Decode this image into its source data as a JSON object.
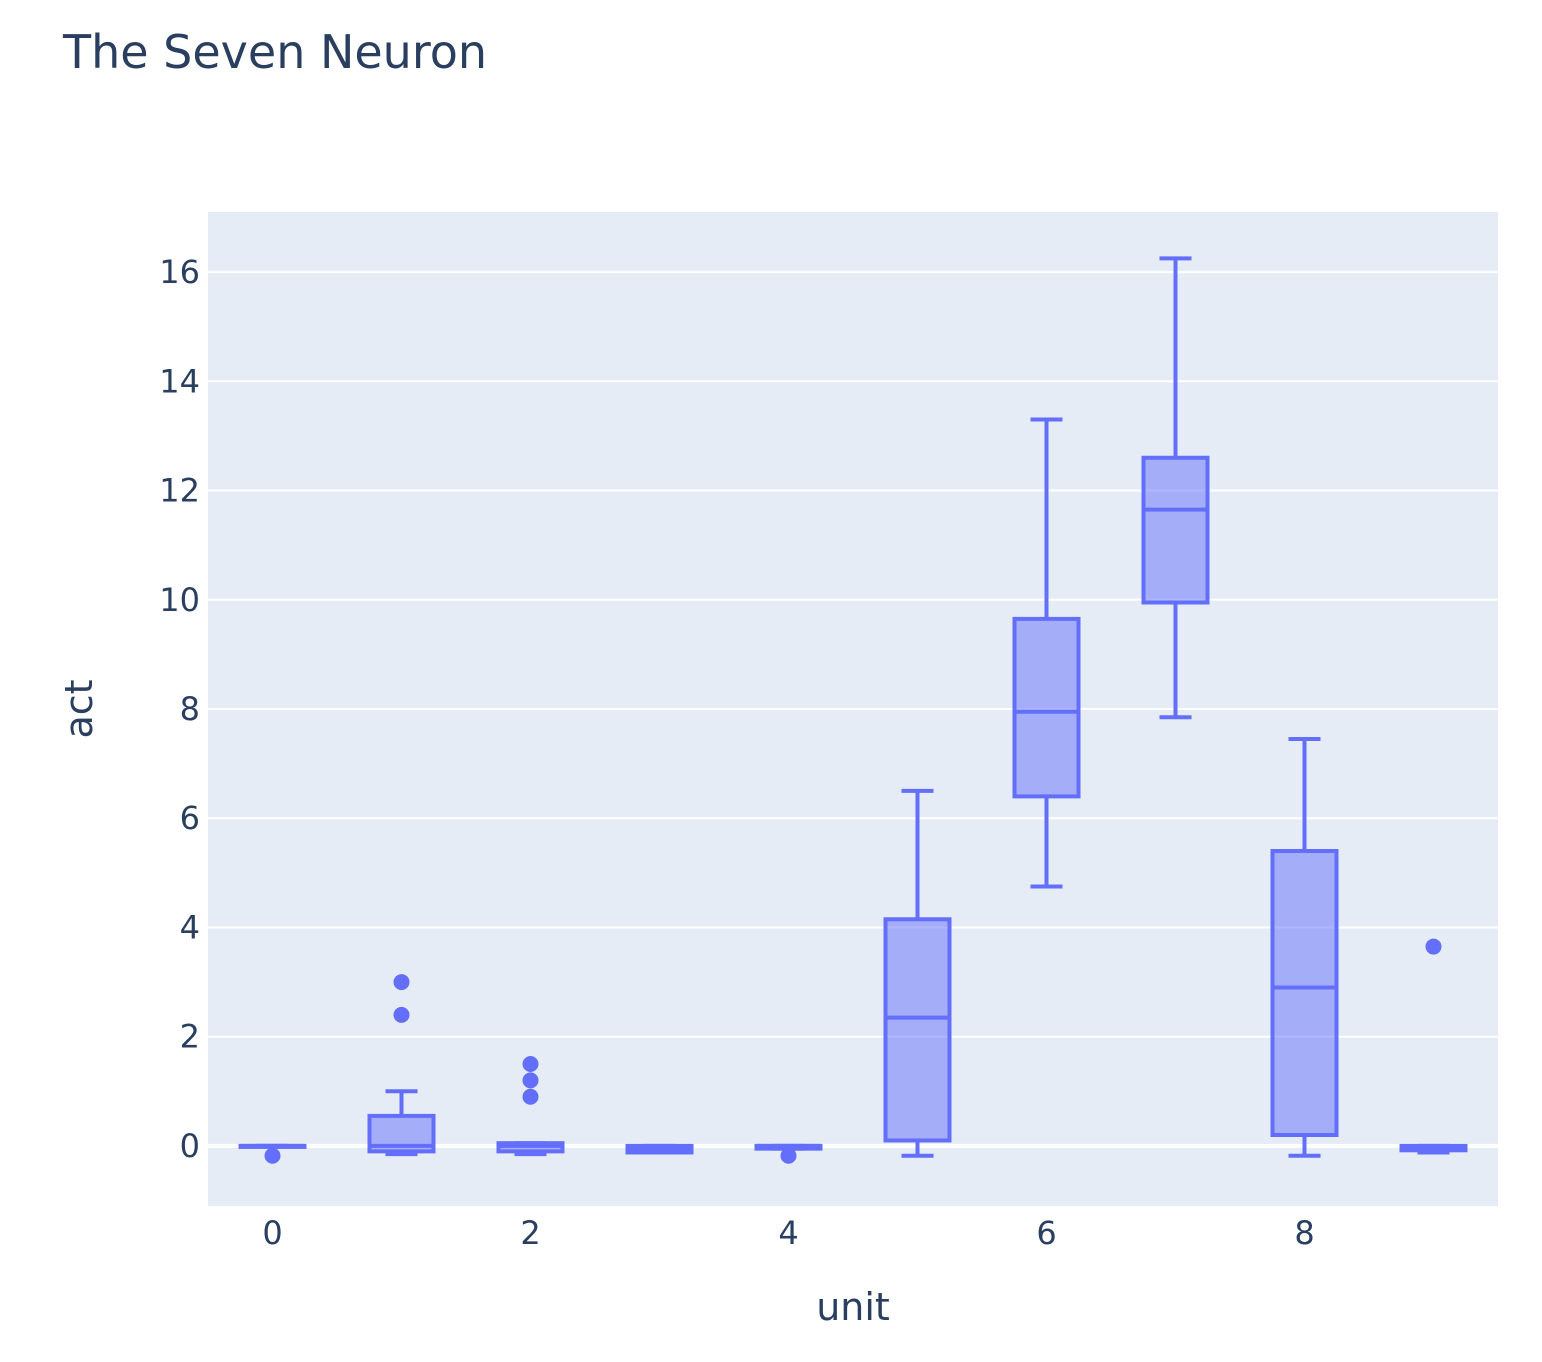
{
  "chart_data": {
    "type": "box",
    "title": "The Seven Neuron",
    "xlabel": "unit",
    "ylabel": "act",
    "xlim": [
      -0.5,
      9.5
    ],
    "ylim": [
      -1.1,
      17.1
    ],
    "x_ticks": [
      0,
      2,
      4,
      6,
      8
    ],
    "y_ticks": [
      0,
      2,
      4,
      6,
      8,
      10,
      12,
      14,
      16
    ],
    "grid": true,
    "plot_bgcolor": "#e5ecf6",
    "box_color": "#636efa",
    "box_fill": "rgba(99,110,250,0.5)",
    "text_color": "#2a3f5f",
    "boxes": [
      {
        "unit": 0,
        "min": 0.0,
        "q1": 0.0,
        "median": 0.0,
        "q3": 0.0,
        "max": 0.0,
        "outliers": [
          -0.18
        ]
      },
      {
        "unit": 1,
        "min": -0.15,
        "q1": -0.1,
        "median": 0.0,
        "q3": 0.55,
        "max": 1.0,
        "outliers": [
          2.4,
          3.0
        ]
      },
      {
        "unit": 2,
        "min": -0.15,
        "q1": -0.1,
        "median": 0.0,
        "q3": 0.05,
        "max": 0.05,
        "outliers": [
          0.9,
          1.2,
          1.5
        ]
      },
      {
        "unit": 3,
        "min": -0.12,
        "q1": -0.12,
        "median": -0.05,
        "q3": 0.0,
        "max": 0.0,
        "outliers": []
      },
      {
        "unit": 4,
        "min": -0.05,
        "q1": -0.05,
        "median": 0.0,
        "q3": 0.0,
        "max": 0.0,
        "outliers": [
          -0.18
        ]
      },
      {
        "unit": 5,
        "min": -0.18,
        "q1": 0.1,
        "median": 2.35,
        "q3": 4.15,
        "max": 6.5,
        "outliers": []
      },
      {
        "unit": 6,
        "min": 4.75,
        "q1": 6.4,
        "median": 7.95,
        "q3": 9.65,
        "max": 13.3,
        "outliers": []
      },
      {
        "unit": 7,
        "min": 7.85,
        "q1": 9.95,
        "median": 11.65,
        "q3": 12.6,
        "max": 16.25,
        "outliers": []
      },
      {
        "unit": 8,
        "min": -0.18,
        "q1": 0.2,
        "median": 2.9,
        "q3": 5.4,
        "max": 7.45,
        "outliers": []
      },
      {
        "unit": 9,
        "min": -0.12,
        "q1": -0.08,
        "median": -0.05,
        "q3": 0.0,
        "max": 0.0,
        "outliers": [
          3.65
        ]
      }
    ]
  }
}
